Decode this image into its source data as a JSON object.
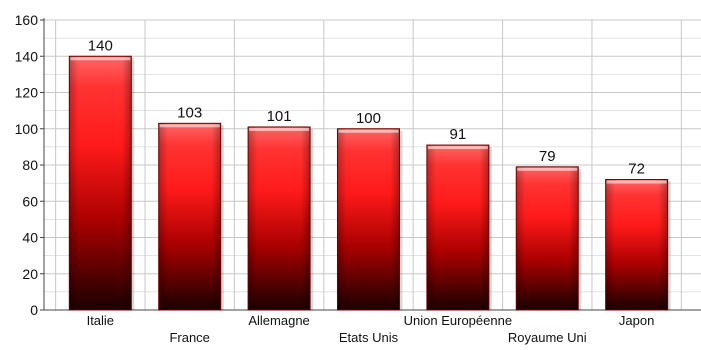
{
  "chart_data": {
    "type": "bar",
    "title": "",
    "xlabel": "",
    "ylabel": "",
    "categories": [
      "Italie",
      "France",
      "Allemagne",
      "Etats Unis",
      "Union Européenne",
      "Royaume Uni",
      "Japon"
    ],
    "values": [
      140,
      103,
      101,
      100,
      91,
      79,
      72
    ],
    "data_labels": [
      "140",
      "103",
      "101",
      "100",
      "91",
      "79",
      "72"
    ],
    "ylim": [
      0,
      160
    ],
    "yticks": [
      0,
      20,
      40,
      60,
      80,
      100,
      120,
      140,
      160
    ],
    "ytick_labels": [
      "0",
      "20",
      "40",
      "60",
      "80",
      "100",
      "120",
      "140",
      "160"
    ],
    "grid": true,
    "legend": "none",
    "colors": {
      "bar_top": "#ff6666",
      "bar_mid": "#ff1a1a",
      "bar_bottom": "#1a0000",
      "bar_outline": "#7a0000",
      "grid": "#c8c8c8",
      "axis": "#444444"
    }
  }
}
